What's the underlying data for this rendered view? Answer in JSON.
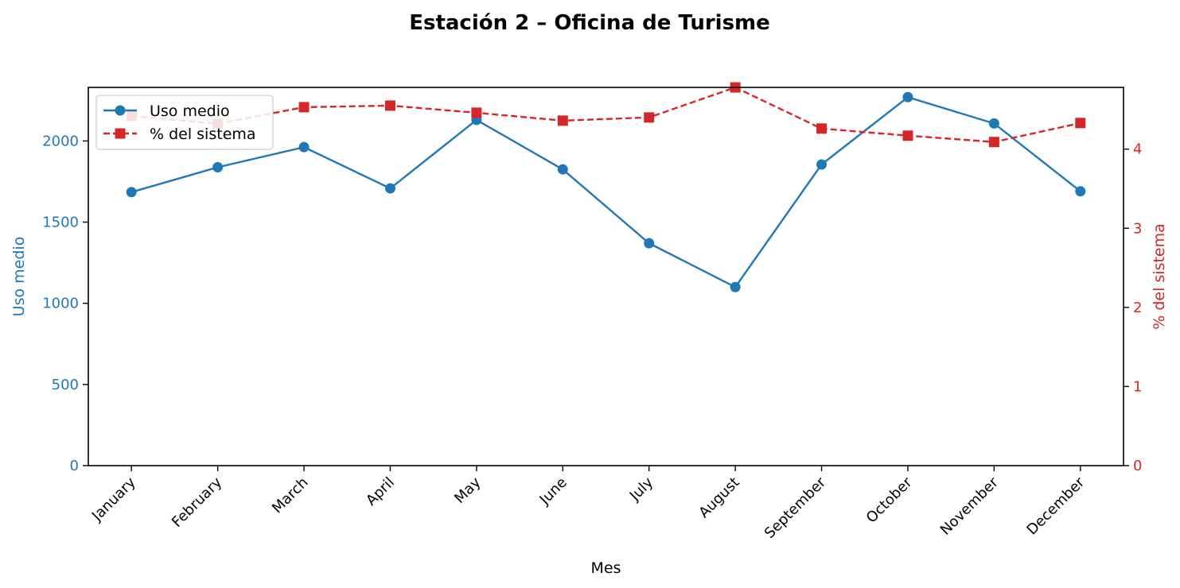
{
  "chart_data": {
    "type": "line",
    "title": "Estación 2 – Oficina de Turisme",
    "xlabel": "Mes",
    "categories": [
      "January",
      "February",
      "March",
      "April",
      "May",
      "June",
      "July",
      "August",
      "September",
      "October",
      "November",
      "December"
    ],
    "y_left": {
      "label": "Uso medio",
      "ylim": [
        0,
        2330
      ],
      "ticks": [
        "0",
        "500",
        "1000",
        "1500",
        "2000"
      ],
      "color": "#1f77b4"
    },
    "y_right": {
      "label": "% del sistema",
      "ylim": [
        0,
        4.78
      ],
      "ticks": [
        "0",
        "1",
        "2",
        "3",
        "4"
      ],
      "color": "#d62728"
    },
    "series": [
      {
        "name": "Uso medio",
        "axis": "left",
        "style": "solid",
        "marker": "circle",
        "color": "#1f77b4",
        "values": [
          1685,
          1838,
          1962,
          1708,
          2130,
          1825,
          1370,
          1100,
          1855,
          2270,
          2108,
          1690
        ]
      },
      {
        "name": "% del sistema",
        "axis": "right",
        "style": "dashed",
        "marker": "square",
        "color": "#d62728",
        "values": [
          4.42,
          4.32,
          4.53,
          4.55,
          4.46,
          4.36,
          4.4,
          4.78,
          4.26,
          4.17,
          4.09,
          4.33
        ]
      }
    ],
    "legend": {
      "position": "top-left"
    },
    "grid": false
  }
}
